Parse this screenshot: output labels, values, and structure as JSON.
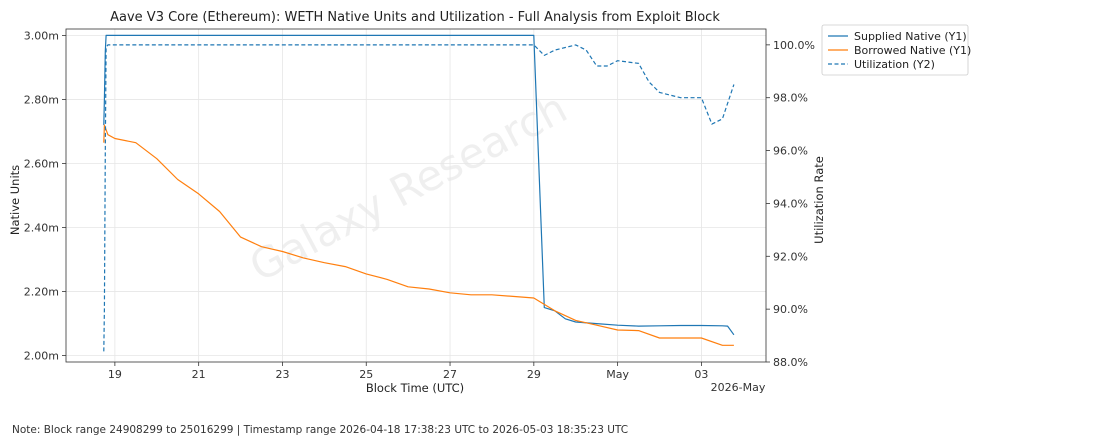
{
  "chart_data": {
    "type": "line",
    "title": "Aave V3 Core (Ethereum): WETH Native Units and Utilization - Full Analysis from Exploit Block",
    "xlabel": "Block Time (UTC)",
    "ylabel": "Native Units",
    "y2label": "Utilization Rate",
    "watermark": "Galaxy Research",
    "x_ticks": [
      "19",
      "21",
      "23",
      "25",
      "27",
      "29",
      "May",
      "03"
    ],
    "x_offset_label": "2026-May",
    "x_tick_dates": [
      "2026-04-19",
      "2026-04-21",
      "2026-04-23",
      "2026-04-25",
      "2026-04-27",
      "2026-04-29",
      "2026-05-01",
      "2026-05-03"
    ],
    "xlim": [
      "2026-04-17 20:00",
      "2026-05-04 13:00"
    ],
    "ylim": [
      1.98,
      3.02
    ],
    "y_ticks": [
      "2.00m",
      "2.20m",
      "2.40m",
      "2.60m",
      "2.80m",
      "3.00m"
    ],
    "y_tick_values": [
      2.0,
      2.2,
      2.4,
      2.6,
      2.8,
      3.0
    ],
    "y2lim": [
      88.0,
      100.6
    ],
    "y2_ticks": [
      "88.0%",
      "90.0%",
      "92.0%",
      "94.0%",
      "96.0%",
      "98.0%",
      "100.0%"
    ],
    "y2_tick_values": [
      88,
      90,
      92,
      94,
      96,
      98,
      100
    ],
    "grid": true,
    "legend_position": "outside-top-right",
    "series": [
      {
        "name": "Supplied Native (Y1)",
        "axis": "y1",
        "color": "#1f77b4",
        "style": "solid",
        "x": [
          "2026-04-18 17:38",
          "2026-04-18 18:00",
          "2026-04-18 18:30",
          "2026-04-18 19:00",
          "2026-04-18 20:00",
          "2026-04-19 00:00",
          "2026-04-29 00:00",
          "2026-04-29 06:00",
          "2026-04-29 12:00",
          "2026-04-29 18:00",
          "2026-04-30 00:00",
          "2026-04-30 12:00",
          "2026-05-01 00:00",
          "2026-05-01 12:00",
          "2026-05-02 00:00",
          "2026-05-02 12:00",
          "2026-05-03 00:00",
          "2026-05-03 12:00",
          "2026-05-03 15:00",
          "2026-05-03 18:35"
        ],
        "values": [
          2.72,
          2.8,
          2.95,
          3.0,
          3.0,
          3.0,
          3.0,
          2.15,
          2.14,
          2.115,
          2.105,
          2.1,
          2.095,
          2.092,
          2.093,
          2.094,
          2.094,
          2.093,
          2.092,
          2.065
        ]
      },
      {
        "name": "Borrowed Native (Y1)",
        "axis": "y1",
        "color": "#ff7f0e",
        "style": "solid",
        "x": [
          "2026-04-18 17:38",
          "2026-04-18 18:00",
          "2026-04-18 20:00",
          "2026-04-19 00:00",
          "2026-04-19 12:00",
          "2026-04-20 00:00",
          "2026-04-20 12:00",
          "2026-04-21 00:00",
          "2026-04-21 12:00",
          "2026-04-22 00:00",
          "2026-04-22 12:00",
          "2026-04-23 00:00",
          "2026-04-23 12:00",
          "2026-04-24 00:00",
          "2026-04-24 12:00",
          "2026-04-25 00:00",
          "2026-04-25 12:00",
          "2026-04-26 00:00",
          "2026-04-26 12:00",
          "2026-04-27 00:00",
          "2026-04-27 12:00",
          "2026-04-28 00:00",
          "2026-04-28 12:00",
          "2026-04-29 00:00",
          "2026-04-29 12:00",
          "2026-04-30 00:00",
          "2026-04-30 12:00",
          "2026-05-01 00:00",
          "2026-05-01 12:00",
          "2026-05-02 00:00",
          "2026-05-02 12:00",
          "2026-05-03 00:00",
          "2026-05-03 12:00",
          "2026-05-03 18:35"
        ],
        "values": [
          2.665,
          2.72,
          2.69,
          2.678,
          2.665,
          2.615,
          2.55,
          2.505,
          2.45,
          2.37,
          2.34,
          2.325,
          2.305,
          2.29,
          2.278,
          2.255,
          2.238,
          2.215,
          2.208,
          2.196,
          2.19,
          2.19,
          2.185,
          2.18,
          2.14,
          2.11,
          2.095,
          2.08,
          2.078,
          2.055,
          2.055,
          2.055,
          2.032,
          2.032
        ]
      },
      {
        "name": "Utilization (Y2)",
        "axis": "y2",
        "color": "#1f77b4",
        "style": "dashed",
        "x": [
          "2026-04-18 17:38",
          "2026-04-18 18:00",
          "2026-04-18 18:30",
          "2026-04-18 19:00",
          "2026-04-18 20:00",
          "2026-04-19 00:00",
          "2026-04-29 00:00",
          "2026-04-29 06:00",
          "2026-04-29 12:00",
          "2026-04-29 18:00",
          "2026-04-30 00:00",
          "2026-04-30 06:00",
          "2026-04-30 12:00",
          "2026-04-30 18:00",
          "2026-05-01 00:00",
          "2026-05-01 12:00",
          "2026-05-01 18:00",
          "2026-05-02 00:00",
          "2026-05-02 12:00",
          "2026-05-03 00:00",
          "2026-05-03 06:00",
          "2026-05-03 12:00",
          "2026-05-03 18:35"
        ],
        "values": [
          88.4,
          90.0,
          96.0,
          99.9,
          100.0,
          100.0,
          100.0,
          99.6,
          99.8,
          99.9,
          100.0,
          99.8,
          99.2,
          99.2,
          99.4,
          99.3,
          98.6,
          98.2,
          98.0,
          98.0,
          97.0,
          97.2,
          98.5
        ]
      }
    ]
  },
  "footer": {
    "note": "Note: Block range 24908299 to 25016299 | Timestamp range 2026-04-18 17:38:23 UTC to 2026-05-03 18:35:23 UTC"
  }
}
